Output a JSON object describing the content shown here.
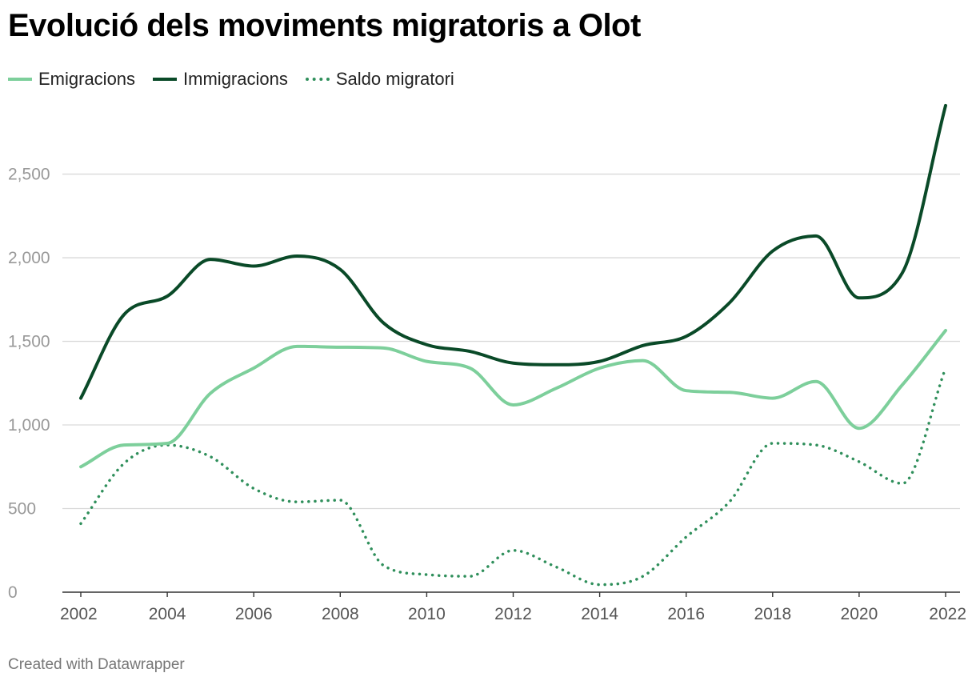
{
  "header": {
    "title": "Evolució dels moviments migratoris a Olot"
  },
  "footer": {
    "credit": "Created with Datawrapper"
  },
  "chart_data": {
    "type": "line",
    "title": "Evolució dels moviments migratoris a Olot",
    "xlabel": "",
    "ylabel": "",
    "ylim": [
      0,
      2900
    ],
    "yticks": [
      0,
      500,
      1000,
      1500,
      2000,
      2500
    ],
    "ytick_labels": [
      "0",
      "500",
      "1,000",
      "1,500",
      "2,000",
      "2,500"
    ],
    "xticks": [
      2002,
      2004,
      2006,
      2008,
      2010,
      2012,
      2014,
      2016,
      2018,
      2020,
      2022
    ],
    "xtick_labels": [
      "2002",
      "2004",
      "2006",
      "2008",
      "2010",
      "2012",
      "2014",
      "2016",
      "2018",
      "2020",
      "2022"
    ],
    "legend_position": "top-left",
    "grid": true,
    "x": [
      2002,
      2003,
      2004,
      2005,
      2006,
      2007,
      2008,
      2009,
      2010,
      2011,
      2012,
      2013,
      2014,
      2015,
      2016,
      2017,
      2018,
      2019,
      2020,
      2021,
      2022
    ],
    "series": [
      {
        "name": "Emigracions",
        "color": "#7dcf9b",
        "style": "solid",
        "values": [
          750,
          880,
          890,
          1190,
          1340,
          1470,
          1465,
          1460,
          1380,
          1340,
          1120,
          1220,
          1340,
          1385,
          1205,
          1195,
          1160,
          1260,
          980,
          1240,
          1565
        ]
      },
      {
        "name": "Immigracions",
        "color": "#0a4a28",
        "style": "solid",
        "values": [
          1160,
          1660,
          1770,
          1990,
          1950,
          2010,
          1930,
          1610,
          1480,
          1440,
          1370,
          1360,
          1380,
          1475,
          1530,
          1730,
          2040,
          2130,
          1760,
          1910,
          2910
        ]
      },
      {
        "name": "Saldo migratori",
        "color": "#2f8f5b",
        "style": "dotted",
        "values": [
          410,
          770,
          880,
          810,
          620,
          540,
          550,
          160,
          105,
          95,
          250,
          150,
          45,
          95,
          330,
          540,
          890,
          880,
          780,
          650,
          1340
        ]
      }
    ]
  }
}
